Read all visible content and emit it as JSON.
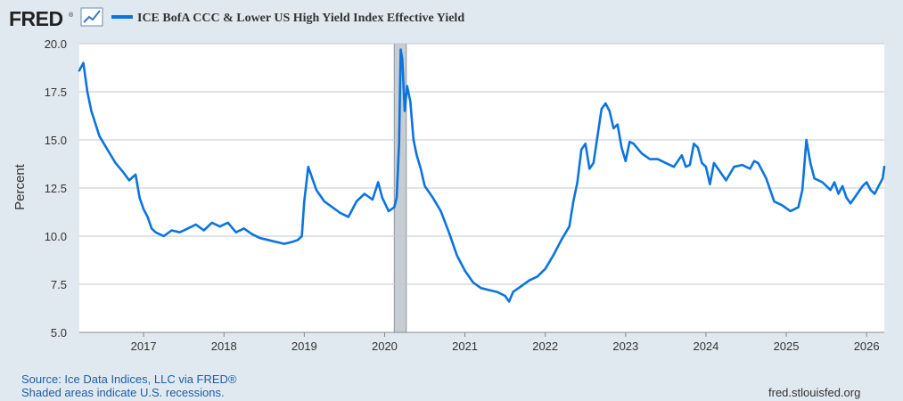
{
  "brand": {
    "logo_text": "FRED",
    "logo_mark": "®"
  },
  "colors": {
    "series": "#0b74de",
    "background": "#e1e9f0",
    "plot_bg": "#ffffff",
    "recession": "#c8cdd3",
    "grid": "#c2c8cf"
  },
  "footer": {
    "source": "Source: Ice Data Indices, LLC via FRED®",
    "recession_note": "Shaded areas indicate U.S. recessions.",
    "site": "fred.stlouisfed.org"
  },
  "chart_data": {
    "type": "line",
    "title": "",
    "xlabel": "",
    "ylabel": "Percent",
    "xlim": [
      2016.2,
      2026.22
    ],
    "ylim": [
      5.0,
      20.0
    ],
    "yticks": [
      5.0,
      7.5,
      10.0,
      12.5,
      15.0,
      17.5,
      20.0
    ],
    "ytick_labels": [
      "5.0",
      "7.5",
      "10.0",
      "12.5",
      "15.0",
      "17.5",
      "20.0"
    ],
    "xticks": [
      2017,
      2018,
      2019,
      2020,
      2021,
      2022,
      2023,
      2024,
      2025,
      2026
    ],
    "xtick_labels": [
      "2017",
      "2018",
      "2019",
      "2020",
      "2021",
      "2022",
      "2023",
      "2024",
      "2025",
      "2026"
    ],
    "grid": true,
    "legend_position": "top-left",
    "recessions": [
      {
        "start": 2020.12,
        "end": 2020.27
      }
    ],
    "series": [
      {
        "name": "ICE BofA CCC & Lower US High Yield Index Effective Yield",
        "x": [
          2016.2,
          2016.25,
          2016.3,
          2016.35,
          2016.45,
          2016.55,
          2016.65,
          2016.75,
          2016.82,
          2016.9,
          2016.95,
          2017.0,
          2017.05,
          2017.1,
          2017.15,
          2017.25,
          2017.35,
          2017.45,
          2017.55,
          2017.65,
          2017.75,
          2017.85,
          2017.95,
          2018.05,
          2018.15,
          2018.25,
          2018.35,
          2018.45,
          2018.55,
          2018.65,
          2018.75,
          2018.85,
          2018.92,
          2018.97,
          2019.0,
          2019.05,
          2019.15,
          2019.25,
          2019.35,
          2019.45,
          2019.55,
          2019.65,
          2019.75,
          2019.85,
          2019.92,
          2019.97,
          2020.05,
          2020.12,
          2020.15,
          2020.18,
          2020.2,
          2020.22,
          2020.25,
          2020.28,
          2020.32,
          2020.36,
          2020.4,
          2020.45,
          2020.5,
          2020.6,
          2020.7,
          2020.8,
          2020.9,
          2021.0,
          2021.1,
          2021.2,
          2021.3,
          2021.4,
          2021.5,
          2021.55,
          2021.6,
          2021.7,
          2021.8,
          2021.9,
          2022.0,
          2022.1,
          2022.2,
          2022.3,
          2022.35,
          2022.4,
          2022.45,
          2022.5,
          2022.55,
          2022.6,
          2022.65,
          2022.7,
          2022.75,
          2022.8,
          2022.85,
          2022.9,
          2022.95,
          2023.0,
          2023.05,
          2023.1,
          2023.2,
          2023.3,
          2023.4,
          2023.5,
          2023.6,
          2023.7,
          2023.75,
          2023.8,
          2023.85,
          2023.9,
          2023.95,
          2024.0,
          2024.05,
          2024.1,
          2024.15,
          2024.25,
          2024.35,
          2024.45,
          2024.55,
          2024.6,
          2024.65,
          2024.75,
          2024.85,
          2024.95,
          2025.05,
          2025.15,
          2025.2,
          2025.25,
          2025.3,
          2025.35,
          2025.45,
          2025.55,
          2025.6,
          2025.65,
          2025.7,
          2025.75,
          2025.8,
          2025.85,
          2025.9,
          2025.95,
          2026.0,
          2026.05,
          2026.1,
          2026.15,
          2026.2,
          2026.22
        ],
        "values": [
          18.6,
          19.0,
          17.5,
          16.5,
          15.2,
          14.5,
          13.8,
          13.3,
          12.9,
          13.2,
          12.0,
          11.4,
          11.0,
          10.4,
          10.2,
          10.0,
          10.3,
          10.2,
          10.4,
          10.6,
          10.3,
          10.7,
          10.5,
          10.7,
          10.2,
          10.4,
          10.1,
          9.9,
          9.8,
          9.7,
          9.6,
          9.7,
          9.8,
          10.0,
          11.8,
          13.6,
          12.4,
          11.8,
          11.5,
          11.2,
          11.0,
          11.8,
          12.2,
          11.9,
          12.8,
          12.0,
          11.3,
          11.5,
          12.0,
          14.8,
          19.7,
          19.2,
          16.5,
          17.8,
          17.0,
          15.0,
          14.2,
          13.5,
          12.6,
          12.0,
          11.3,
          10.2,
          9.0,
          8.2,
          7.6,
          7.3,
          7.2,
          7.1,
          6.9,
          6.6,
          7.1,
          7.4,
          7.7,
          7.9,
          8.3,
          9.0,
          9.8,
          10.5,
          11.8,
          12.8,
          14.5,
          14.8,
          13.5,
          13.8,
          15.2,
          16.6,
          16.9,
          16.5,
          15.6,
          15.8,
          14.6,
          13.9,
          14.9,
          14.8,
          14.3,
          14.0,
          14.0,
          13.8,
          13.6,
          14.2,
          13.6,
          13.7,
          14.8,
          14.6,
          13.8,
          13.6,
          12.7,
          13.8,
          13.5,
          12.9,
          13.6,
          13.7,
          13.5,
          13.9,
          13.8,
          13.0,
          11.8,
          11.6,
          11.3,
          11.5,
          12.4,
          15.0,
          13.8,
          13.0,
          12.8,
          12.4,
          12.8,
          12.2,
          12.6,
          12.0,
          11.7,
          12.0,
          12.3,
          12.6,
          12.8,
          12.4,
          12.2,
          12.6,
          13.0,
          13.6
        ]
      }
    ]
  }
}
